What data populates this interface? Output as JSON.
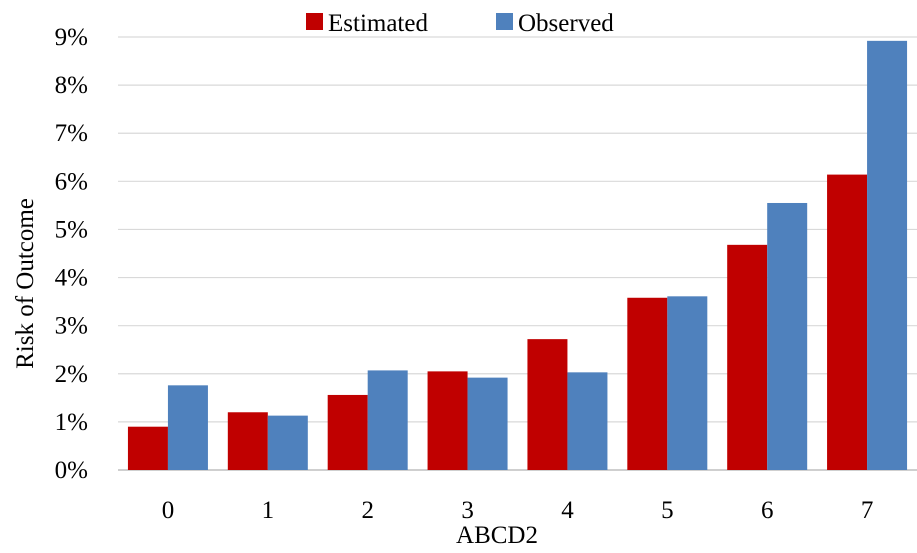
{
  "chart_data": {
    "type": "bar",
    "categories": [
      "0",
      "1",
      "2",
      "3",
      "4",
      "5",
      "6",
      "7"
    ],
    "series": [
      {
        "name": "Estimated",
        "color": "#C00000",
        "values": [
          0.9,
          1.2,
          1.56,
          2.05,
          2.72,
          3.58,
          4.68,
          6.14
        ]
      },
      {
        "name": "Observed",
        "color": "#4F81BD",
        "values": [
          1.76,
          1.13,
          2.07,
          1.92,
          2.03,
          3.61,
          5.55,
          8.92
        ]
      }
    ],
    "xlabel": "ABCD2",
    "ylabel": "Risk of Outcome",
    "ylim": [
      0,
      9
    ],
    "yticks": [
      0,
      1,
      2,
      3,
      4,
      5,
      6,
      7,
      8,
      9
    ],
    "ytick_labels": [
      "0%",
      "1%",
      "2%",
      "3%",
      "4%",
      "5%",
      "6%",
      "7%",
      "8%",
      "9%"
    ],
    "grid": true,
    "legend_position": "top"
  }
}
